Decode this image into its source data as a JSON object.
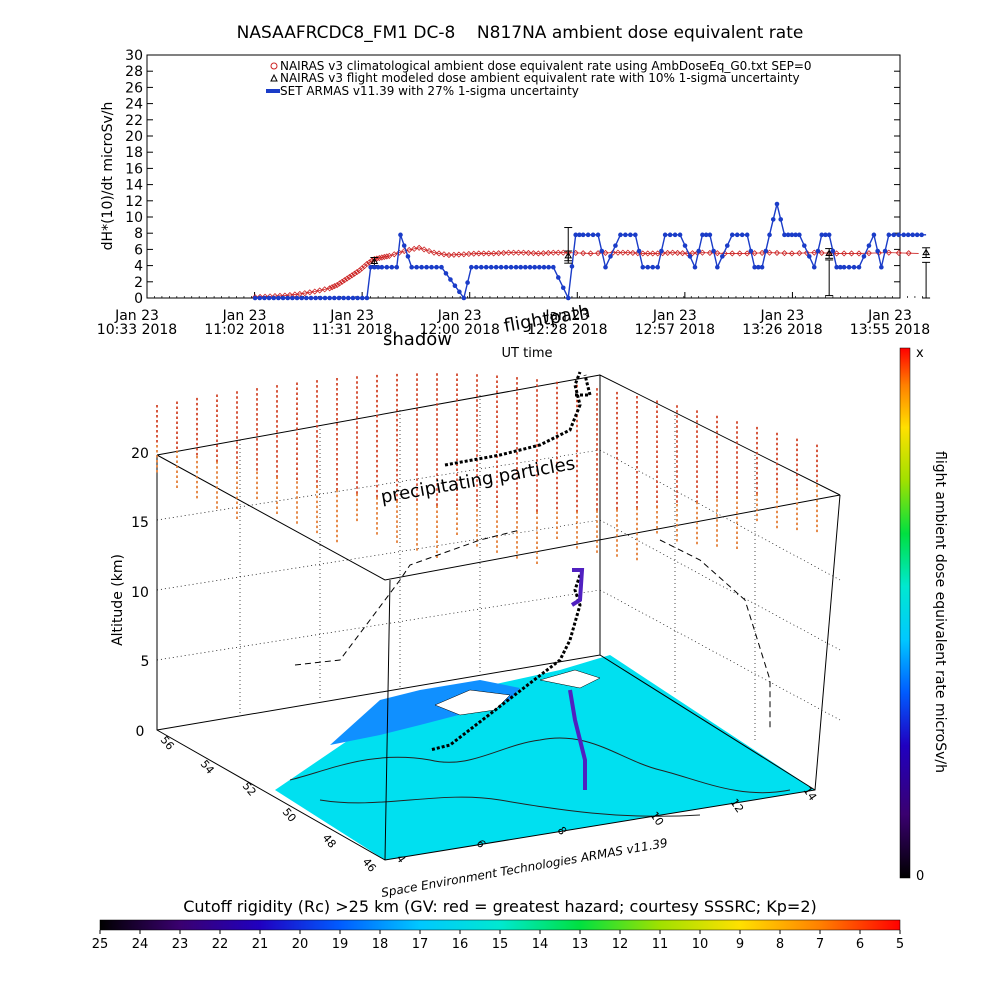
{
  "chart_data": [
    {
      "type": "line",
      "title": "NASAAFRCDC8_FM1 DC-8    N817NA ambient dose equivalent rate",
      "ylabel": "dH*(10)/dt microSv/h",
      "xlabel": "UT time",
      "ylim": [
        0,
        30
      ],
      "yticks": [
        "0",
        "2",
        "4",
        "6",
        "8",
        "10",
        "12",
        "14",
        "16",
        "18",
        "20",
        "22",
        "24",
        "26",
        "28",
        "30"
      ],
      "xtick_labels": [
        {
          "day": "Jan 23",
          "time": "10:33 2018"
        },
        {
          "day": "Jan 23",
          "time": "11:02 2018"
        },
        {
          "day": "Jan 23",
          "time": "11:31 2018"
        },
        {
          "day": "Jan 23",
          "time": "12:00 2018"
        },
        {
          "day": "Jan 23",
          "time": "12:28 2018"
        },
        {
          "day": "Jan 23",
          "time": "12:57 2018"
        },
        {
          "day": "Jan 23",
          "time": "13:26 2018"
        },
        {
          "day": "Jan 23",
          "time": "13:55 2018"
        }
      ],
      "legend": [
        "NAIRAS v3 climatological ambient dose equivalent rate using AmbDoseEq_G0.txt SEP=0",
        "NAIRAS v3 flight modeled dose ambient equivalent rate with 10% 1-sigma uncertainty",
        "SET ARMAS v11.39 with 27% 1-sigma uncertainty"
      ],
      "series": [
        {
          "name": "NAIRAS v3 climatological ambient dose equivalent rate using AmbDoseEq_G0.txt SEP=0",
          "color": "#cc2222",
          "x_minutes": [
            0,
            4,
            8,
            12,
            16,
            20,
            22,
            24,
            26,
            28,
            30,
            32,
            34,
            36,
            40,
            44,
            48,
            52,
            56,
            60,
            64,
            68,
            72,
            76,
            80,
            84,
            90,
            96,
            100,
            104,
            108,
            112,
            116,
            120,
            126,
            132,
            138,
            144,
            150,
            156,
            162,
            170,
            178
          ],
          "y": [
            0.1,
            0.2,
            0.3,
            0.5,
            0.8,
            1.2,
            1.6,
            2.2,
            2.8,
            3.4,
            4.2,
            4.8,
            5.0,
            5.2,
            5.8,
            6.2,
            5.6,
            5.3,
            5.4,
            5.5,
            5.5,
            5.6,
            5.6,
            5.5,
            5.6,
            5.6,
            5.5,
            5.6,
            5.6,
            5.5,
            5.5,
            5.6,
            5.5,
            5.6,
            5.5,
            5.5,
            5.6,
            5.5,
            5.6,
            5.5,
            5.5,
            5.6,
            5.5
          ]
        },
        {
          "name": "NAIRAS v3 flight modeled dose ambient equivalent rate with 10% 1-sigma uncertainty",
          "color": "#000000",
          "x_minutes": [
            32,
            84,
            154,
            180
          ],
          "y": [
            4.5,
            5.2,
            5.5,
            5.6
          ],
          "err": [
            0.5,
            0.6,
            0.6,
            0.6
          ]
        },
        {
          "name": "SET ARMAS v11.39 with 27% 1-sigma uncertainty",
          "color": "#1a3cc8",
          "x_minutes": [
            0,
            10,
            20,
            30,
            31,
            34,
            38,
            39,
            42,
            46,
            50,
            56,
            58,
            62,
            66,
            70,
            80,
            84,
            86,
            88,
            92,
            94,
            98,
            102,
            104,
            108,
            110,
            114,
            118,
            120,
            122,
            124,
            128,
            132,
            134,
            136,
            138,
            140,
            142,
            144,
            146,
            150,
            152,
            154,
            156,
            158,
            162,
            166,
            168,
            170,
            174,
            180
          ],
          "y": [
            0,
            0,
            0,
            0,
            3.8,
            3.8,
            3.8,
            7.8,
            3.8,
            3.8,
            3.8,
            0,
            3.8,
            3.8,
            3.8,
            3.8,
            3.8,
            0,
            7.8,
            7.8,
            7.8,
            3.8,
            7.8,
            7.8,
            3.8,
            3.8,
            7.8,
            7.8,
            3.8,
            7.8,
            7.8,
            3.8,
            7.8,
            7.8,
            3.8,
            3.8,
            7.8,
            11.6,
            7.8,
            7.8,
            7.8,
            3.8,
            7.8,
            7.8,
            3.8,
            3.8,
            3.8,
            7.8,
            3.8,
            7.8,
            7.8,
            7.8
          ],
          "err_at": [
            [
              84,
              6.5
            ],
            [
              154,
              2.5
            ],
            [
              180,
              2.2
            ]
          ]
        }
      ]
    },
    {
      "type": "scatter",
      "subtype": "3d-flight-track",
      "zlabel": "Altitude (km)",
      "zticks": [
        "0",
        "5",
        "10",
        "15",
        "20"
      ],
      "lat_ticks": [
        "46",
        "48",
        "50",
        "52",
        "54",
        "56"
      ],
      "lon_ticks": [
        "4",
        "6",
        "8",
        "10",
        "12",
        "14"
      ],
      "annotations": [
        "flightpath",
        "shadow",
        "precipitating particles"
      ],
      "credit": "Space Environment Technologies ARMAS v11.39",
      "colorbar": {
        "label": "flight ambient dose equivalent rate microSv/h",
        "top": "x",
        "bottom": "0"
      }
    },
    {
      "type": "heatmap",
      "subtype": "colorbar",
      "title": "Cutoff rigidity (Rc) >25 km (GV: red = greatest hazard; courtesy SSSRC; Kp=2)",
      "ticks": [
        "25",
        "24",
        "23",
        "22",
        "21",
        "20",
        "19",
        "18",
        "17",
        "16",
        "15",
        "14",
        "13",
        "12",
        "11",
        "10",
        "9",
        "8",
        "7",
        "6",
        "5"
      ]
    }
  ]
}
